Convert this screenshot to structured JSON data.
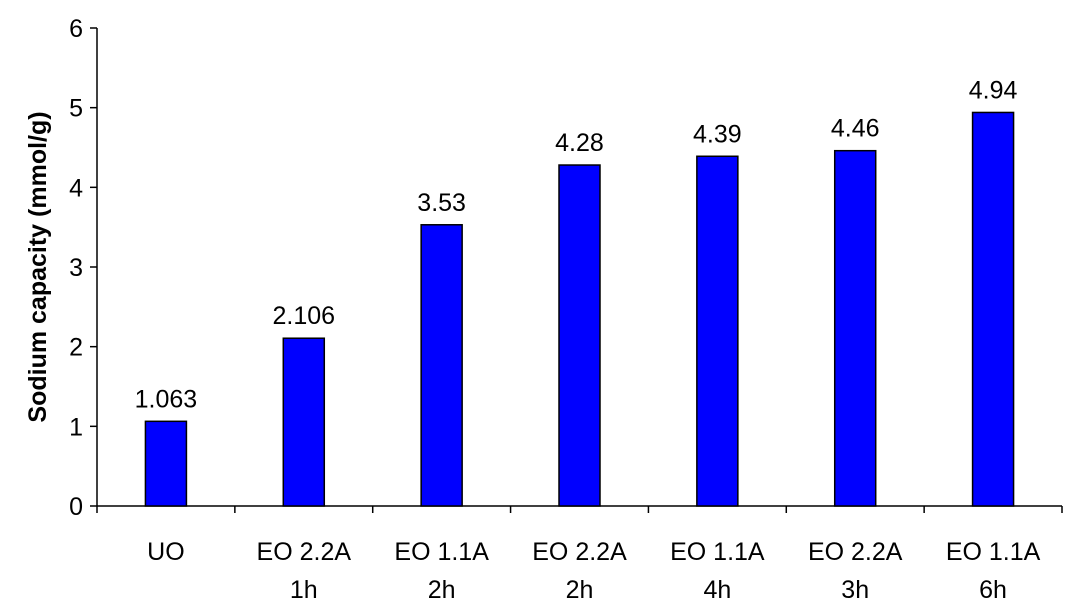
{
  "chart_data": {
    "type": "bar",
    "title": "",
    "xlabel": "",
    "ylabel": "Sodium capacity (mmol/g)",
    "ylim": [
      0,
      6
    ],
    "yticks": [
      0,
      1,
      2,
      3,
      4,
      5,
      6
    ],
    "grid": false,
    "legend": "none",
    "categories": [
      [
        "UO"
      ],
      [
        "EO 2.2A",
        "1h"
      ],
      [
        "EO 1.1A",
        "2h"
      ],
      [
        "EO 2.2A",
        "2h"
      ],
      [
        "EO 1.1A",
        "4h"
      ],
      [
        "EO 2.2A",
        "3h"
      ],
      [
        "EO 1.1A",
        "6h"
      ]
    ],
    "values": [
      1.063,
      2.106,
      3.53,
      4.28,
      4.39,
      4.46,
      4.94
    ],
    "value_labels": [
      "1.063",
      "2.106",
      "3.53",
      "4.28",
      "4.39",
      "4.46",
      "4.94"
    ],
    "bar_color": "#0000ff",
    "bar_edge_color": "#000000"
  }
}
